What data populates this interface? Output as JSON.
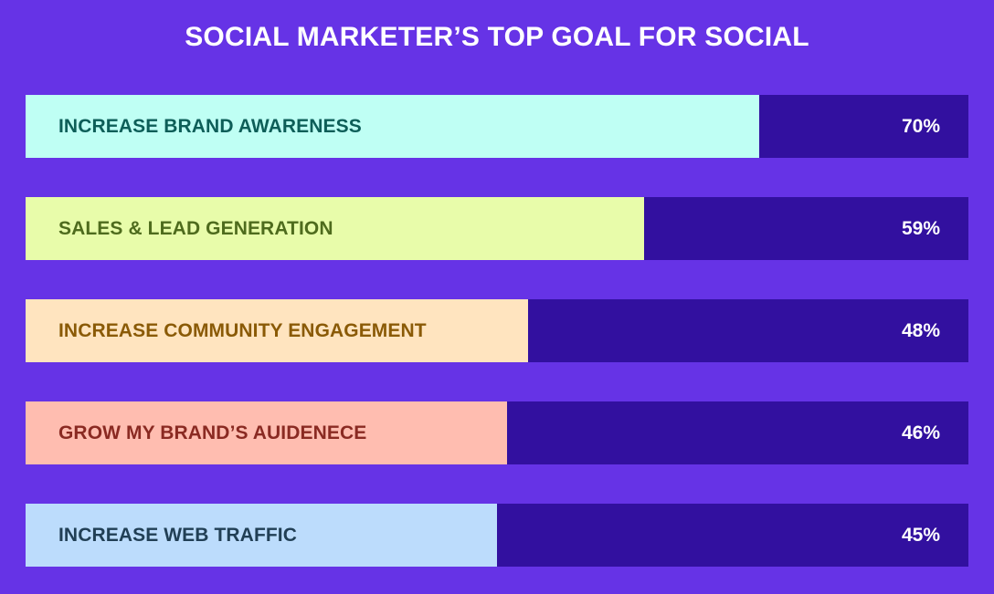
{
  "chart_data": {
    "type": "bar",
    "orientation": "horizontal",
    "title": "SOCIAL MARKETER’S TOP GOAL FOR SOCIAL",
    "xlim": [
      0,
      100
    ],
    "unit": "%",
    "grid": false,
    "categories": [
      "INCREASE BRAND AWARENESS",
      "SALES & LEAD GENERATION",
      "INCREASE COMMUNITY ENGAGEMENT",
      "GROW MY BRAND’S AUIDENECE",
      "INCREASE WEB TRAFFIC"
    ],
    "values": [
      70,
      59,
      48,
      46,
      45
    ],
    "value_labels": [
      "70%",
      "59%",
      "48%",
      "46%",
      "45%"
    ],
    "bar_colors": [
      "#bffff4",
      "#e8fcaa",
      "#ffe4bf",
      "#ffbdb0",
      "#bcdcfc"
    ],
    "label_colors": [
      "#0d5e58",
      "#4e6b1d",
      "#8a5a06",
      "#8a2a22",
      "#213f55"
    ],
    "track_color": "#32109f",
    "background_color": "#6633e6"
  }
}
